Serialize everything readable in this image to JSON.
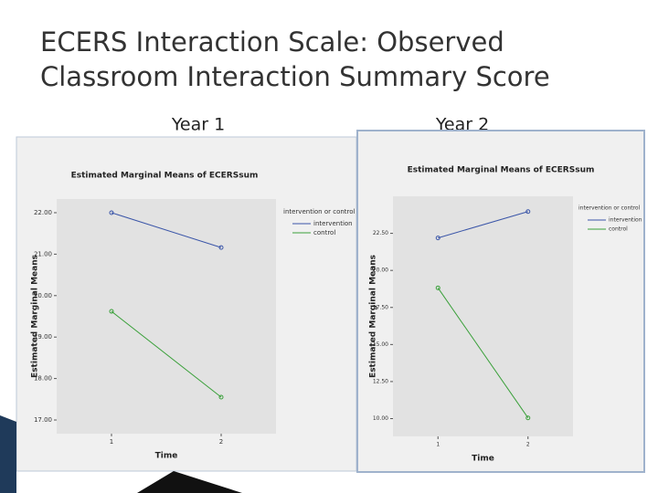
{
  "title": [
    "ECERS Interaction Scale: Observed",
    "Classroom Interaction Summary Score"
  ],
  "panel_labels": [
    "Year 1",
    "Year 2"
  ],
  "chart_data": [
    {
      "type": "line",
      "title": "Estimated Marginal Means of ECERSsum",
      "x_label": "Time",
      "y_label": "Estimated Marginal Means",
      "categories": [
        "1",
        "2"
      ],
      "legend_title": "intervention or control",
      "series": [
        {
          "name": "intervention",
          "color": "#3a55a8",
          "values": [
            22.0,
            21.16
          ]
        },
        {
          "name": "control",
          "color": "#3aa03a",
          "values": [
            19.62,
            17.55
          ]
        }
      ],
      "ylim": [
        16.67,
        22.33
      ],
      "yticks": [
        {
          "value": 17,
          "label": "17.00"
        },
        {
          "value": 18,
          "label": "18.00"
        },
        {
          "value": 19,
          "label": "19.00"
        },
        {
          "value": 20,
          "label": "20.00"
        },
        {
          "value": 21,
          "label": "21.00"
        },
        {
          "value": 22,
          "label": "22.00"
        }
      ]
    },
    {
      "type": "line",
      "title": "Estimated Marginal Means of ECERSsum",
      "x_label": "Time",
      "y_label": "Estimated Marginal Means",
      "categories": [
        "1",
        "2"
      ],
      "legend_title": "intervention or control",
      "series": [
        {
          "name": "intervention",
          "color": "#3a55a8",
          "values": [
            22.19,
            23.97
          ]
        },
        {
          "name": "control",
          "color": "#3aa03a",
          "values": [
            18.82,
            10.05
          ]
        }
      ],
      "ylim": [
        8.8,
        25.0
      ],
      "yticks": [
        {
          "value": 10,
          "label": "10.00"
        },
        {
          "value": 12.5,
          "label": "12.50"
        },
        {
          "value": 15,
          "label": "15.00"
        },
        {
          "value": 17.5,
          "label": "17.50"
        },
        {
          "value": 20,
          "label": "20.00"
        },
        {
          "value": 22.5,
          "label": "22.50"
        }
      ]
    }
  ]
}
